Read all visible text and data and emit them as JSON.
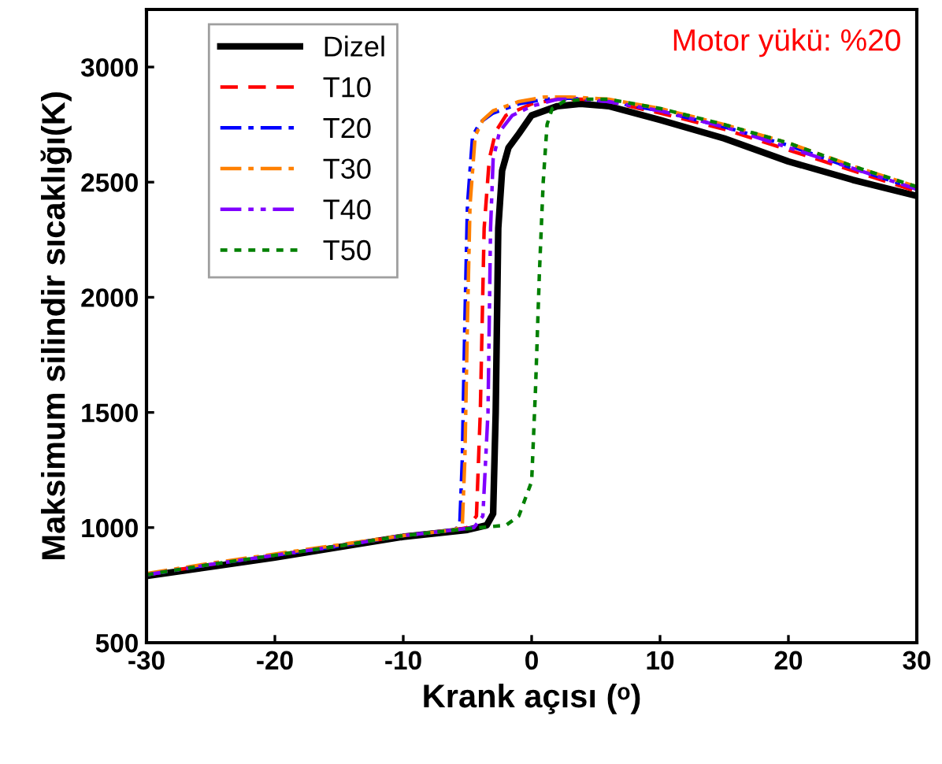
{
  "chart_data": {
    "type": "line",
    "xlabel": "Krank açısı (ᵒ)",
    "ylabel": "Maksimum silindir sıcaklığı(K)",
    "annotations": [
      "Motor yükü: %20"
    ],
    "xlim": [
      -30,
      30
    ],
    "ylim": [
      500,
      3250
    ],
    "xticks": [
      -30,
      -20,
      -10,
      0,
      10,
      20,
      30
    ],
    "yticks": [
      500,
      1000,
      1500,
      2000,
      2500,
      3000
    ],
    "grid": false,
    "legend": "top left",
    "marker": "none",
    "series": [
      {
        "name": "Dizel",
        "color": "#000000",
        "line_style": "solid",
        "x": [
          -30,
          -25,
          -20,
          -15,
          -10,
          -5,
          -3.5,
          -3,
          -2.8,
          -2.6,
          -2.3,
          -1.8,
          -1,
          0,
          2,
          3.8,
          6,
          8,
          10,
          15,
          20,
          25,
          30
        ],
        "values": [
          790,
          830,
          870,
          915,
          960,
          990,
          1010,
          1060,
          1500,
          2300,
          2550,
          2650,
          2710,
          2790,
          2830,
          2840,
          2830,
          2800,
          2770,
          2690,
          2590,
          2510,
          2440
        ]
      },
      {
        "name": "T10",
        "color": "#ff0000",
        "line_style": "dashed",
        "x": [
          -30,
          -25,
          -20,
          -15,
          -10,
          -6,
          -5,
          -4.3,
          -4,
          -3.7,
          -3.3,
          -2.8,
          -2,
          0,
          2,
          4,
          6,
          10,
          15,
          20,
          25,
          30
        ],
        "values": [
          795,
          840,
          880,
          920,
          965,
          990,
          1000,
          1050,
          1500,
          2300,
          2600,
          2720,
          2790,
          2840,
          2860,
          2860,
          2850,
          2800,
          2730,
          2640,
          2550,
          2460
        ]
      },
      {
        "name": "T20",
        "color": "#0000ff",
        "line_style": "dashdot",
        "x": [
          -30,
          -25,
          -20,
          -15,
          -10,
          -6,
          -5.6,
          -5.4,
          -5.2,
          -5,
          -4.6,
          -4,
          -3,
          -1,
          1,
          3,
          6,
          10,
          15,
          20,
          25,
          30
        ],
        "values": [
          795,
          840,
          880,
          920,
          965,
          990,
          1010,
          1300,
          1900,
          2400,
          2700,
          2760,
          2800,
          2840,
          2860,
          2865,
          2850,
          2810,
          2740,
          2660,
          2560,
          2470
        ]
      },
      {
        "name": "T30",
        "color": "#ff8000",
        "line_style": "dashdot",
        "x": [
          -30,
          -25,
          -20,
          -15,
          -10,
          -6,
          -5.4,
          -5.2,
          -5,
          -4.8,
          -4.4,
          -3.8,
          -3,
          -1,
          1,
          3,
          6,
          10,
          15,
          20,
          25,
          30
        ],
        "values": [
          800,
          845,
          885,
          925,
          965,
          990,
          1010,
          1300,
          1900,
          2400,
          2700,
          2770,
          2810,
          2850,
          2870,
          2870,
          2860,
          2820,
          2750,
          2670,
          2570,
          2480
        ]
      },
      {
        "name": "T40",
        "color": "#8000ff",
        "line_style": "dashdotdot",
        "x": [
          -30,
          -25,
          -20,
          -15,
          -10,
          -6,
          -4.5,
          -3.8,
          -3.4,
          -3.2,
          -3,
          -2.5,
          -1.5,
          0,
          2,
          4,
          6,
          10,
          15,
          20,
          25,
          30
        ],
        "values": [
          795,
          840,
          880,
          920,
          965,
          990,
          1000,
          1050,
          1500,
          2300,
          2600,
          2720,
          2790,
          2830,
          2860,
          2860,
          2850,
          2810,
          2740,
          2650,
          2560,
          2470
        ]
      },
      {
        "name": "T50",
        "color": "#008000",
        "line_style": "dotted",
        "x": [
          -30,
          -25,
          -20,
          -15,
          -10,
          -5,
          -2,
          -1,
          0,
          0.3,
          0.6,
          0.9,
          1.2,
          1.6,
          2.5,
          4,
          6,
          10,
          15,
          20,
          25,
          30
        ],
        "values": [
          795,
          840,
          880,
          920,
          965,
          995,
          1010,
          1050,
          1200,
          1600,
          2100,
          2500,
          2750,
          2820,
          2850,
          2860,
          2860,
          2820,
          2750,
          2670,
          2570,
          2480
        ]
      }
    ]
  }
}
